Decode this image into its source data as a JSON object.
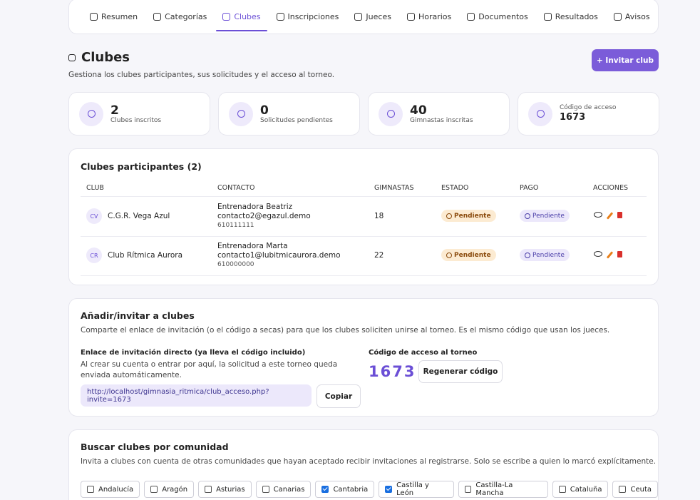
{
  "nav": [
    "Resumen",
    "Categorías",
    "Clubes",
    "Inscripciones",
    "Jueces",
    "Horarios",
    "Documentos",
    "Resultados",
    "Avisos"
  ],
  "nav_active": 2,
  "header": {
    "title": "Clubes",
    "subtitle": "Gestiona los clubes participantes, sus solicitudes y el acceso al torneo.",
    "button": "+ Invitar club"
  },
  "stats": [
    {
      "value": 2,
      "label": "Clubes inscritos"
    },
    {
      "value": 0,
      "label": "Solicitudes pendientes"
    },
    {
      "value": 40,
      "label": "Gimnastas inscritas"
    },
    {
      "label": "Código de acceso",
      "value": 1673
    }
  ],
  "table": {
    "title": "Clubes participantes (2)",
    "columns": [
      "CLUB",
      "CONTACTO",
      "GIMNASTAS",
      "ESTADO",
      "PAGO",
      "ACCIONES"
    ],
    "rows": [
      {
        "initials": "CV",
        "club": "C.G.R. Vega Azul",
        "contact_name": "Entrenadora Beatriz",
        "email": "contacto2@egazul.demo",
        "phone": "610111111",
        "gymnasts": 18,
        "status": "Pendiente",
        "payment": "Pendiente"
      },
      {
        "initials": "CR",
        "club": "Club Rítmica Aurora",
        "contact_name": "Entrenadora Marta",
        "email": "contacto1@lubitmicaurora.demo",
        "phone": "610000000",
        "gymnasts": 22,
        "status": "Pendiente",
        "payment": "Pendiente"
      }
    ]
  },
  "invite": {
    "title": "Añadir/invitar a clubes",
    "description": "Comparte el enlace de invitación (o el código a secas) para que los clubes soliciten unirse al torneo. Es el mismo código que usan los jueces.",
    "link_label": "Enlace de invitación directo (ya lleva el código incluido)",
    "link_help": "Al crear su cuenta o entrar por aquí, la solicitud a este torneo queda enviada automáticamente.",
    "url": "http://localhost/gimnasia_ritmica/club_acceso.php?invite=1673",
    "copy": "Copiar",
    "code_label": "Código de acceso al torneo",
    "code": 1673,
    "regenerate": "Regenerar código"
  },
  "search": {
    "title": "Buscar clubes por comunidad",
    "description": "Invita a clubes con cuenta de otras comunidades que hayan aceptado recibir invitaciones al registrarse. Solo se escribe a quien lo marcó explícitamente.",
    "communities": [
      {
        "name": "Andalucía",
        "checked": false
      },
      {
        "name": "Aragón",
        "checked": false
      },
      {
        "name": "Asturias",
        "checked": false
      },
      {
        "name": "Canarias",
        "checked": false
      },
      {
        "name": "Cantabria",
        "checked": true
      },
      {
        "name": "Castilla y León",
        "checked": true
      },
      {
        "name": "Castilla-La Mancha",
        "checked": false
      },
      {
        "name": "Cataluña",
        "checked": false
      },
      {
        "name": "Ceuta",
        "checked": false
      }
    ]
  }
}
